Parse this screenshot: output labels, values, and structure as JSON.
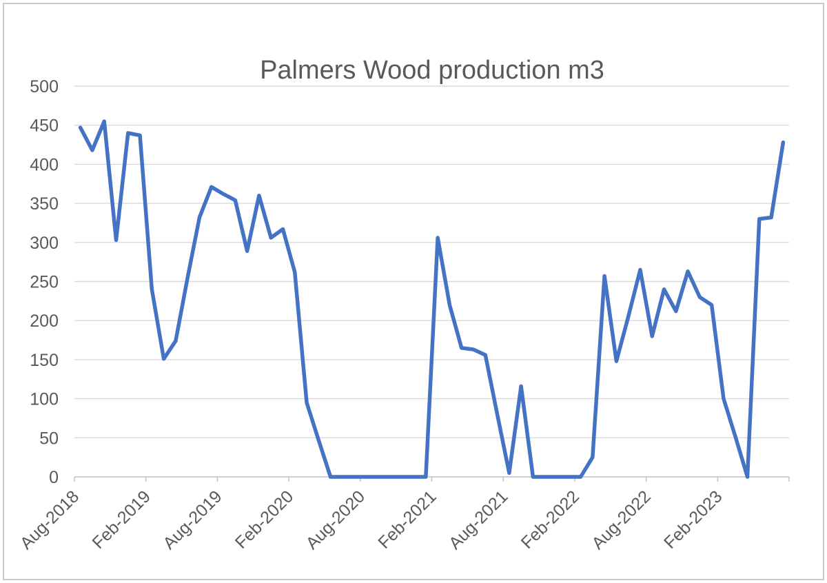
{
  "chart_data": {
    "type": "line",
    "title": "Palmers Wood production m3",
    "legend": "none",
    "grid": "horizontal",
    "ylim": [
      0,
      500
    ],
    "y_ticks": [
      0,
      50,
      100,
      150,
      200,
      250,
      300,
      350,
      400,
      450,
      500
    ],
    "x_tick_labels": [
      "Aug-2018",
      "Feb-2019",
      "Aug-2019",
      "Feb-2020",
      "Aug-2020",
      "Feb-2021",
      "Aug-2021",
      "Feb-2022",
      "Aug-2022",
      "Feb-2023"
    ],
    "x": [
      "Aug-2018",
      "Sep-2018",
      "Oct-2018",
      "Nov-2018",
      "Dec-2018",
      "Jan-2019",
      "Feb-2019",
      "Mar-2019",
      "Apr-2019",
      "May-2019",
      "Jun-2019",
      "Jul-2019",
      "Aug-2019",
      "Sep-2019",
      "Oct-2019",
      "Nov-2019",
      "Dec-2019",
      "Jan-2020",
      "Feb-2020",
      "Mar-2020",
      "Apr-2020",
      "May-2020",
      "Jun-2020",
      "Jul-2020",
      "Aug-2020",
      "Sep-2020",
      "Oct-2020",
      "Nov-2020",
      "Dec-2020",
      "Jan-2021",
      "Feb-2021",
      "Mar-2021",
      "Apr-2021",
      "May-2021",
      "Jun-2021",
      "Jul-2021",
      "Aug-2021",
      "Sep-2021",
      "Oct-2021",
      "Nov-2021",
      "Dec-2021",
      "Jan-2022",
      "Feb-2022",
      "Mar-2022",
      "Apr-2022",
      "May-2022",
      "Jun-2022",
      "Jul-2022",
      "Aug-2022",
      "Sep-2022",
      "Oct-2022",
      "Nov-2022",
      "Dec-2022",
      "Jan-2023",
      "Feb-2023",
      "Mar-2023",
      "Apr-2023",
      "May-2023",
      "Jun-2023",
      "Jul-2023"
    ],
    "series": [
      {
        "name": "Wood production m3",
        "values": [
          447,
          418,
          455,
          303,
          440,
          437,
          240,
          151,
          174,
          255,
          332,
          371,
          362,
          354,
          289,
          360,
          306,
          317,
          262,
          95,
          47,
          0,
          0,
          0,
          0,
          0,
          0,
          0,
          0,
          0,
          306,
          220,
          165,
          163,
          156,
          80,
          5,
          116,
          0,
          0,
          0,
          0,
          0,
          25,
          257,
          148,
          205,
          265,
          180,
          240,
          212,
          263,
          230,
          220,
          100,
          51,
          0,
          330,
          332,
          428
        ]
      }
    ],
    "colors": {
      "line": "#4472C4",
      "text": "#595959",
      "gridline": "#D9D9D9",
      "axis": "#BFBFBF",
      "background": "#FFFFFF",
      "frame_border": "#CBCBCB"
    }
  }
}
